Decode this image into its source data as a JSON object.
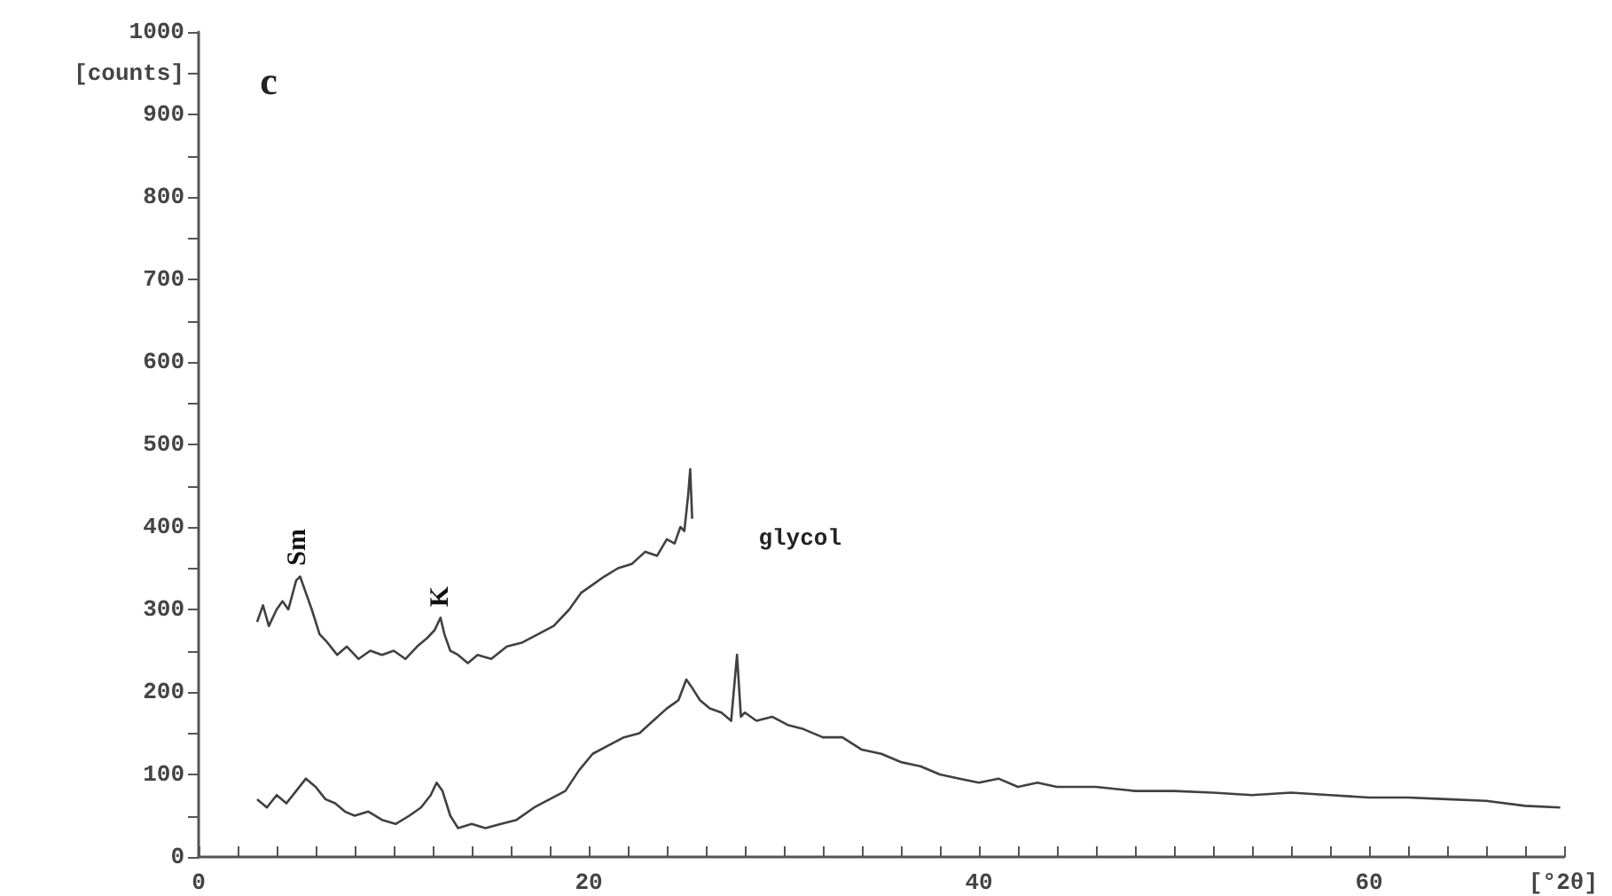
{
  "chart_data": {
    "type": "line",
    "marker": "none",
    "line_style": "solid",
    "xlim": [
      0,
      70
    ],
    "xticks": [
      0,
      {
        "value": 2,
        "label": null
      },
      {
        "value": 4,
        "label": null
      },
      {
        "value": 6,
        "label": null
      },
      {
        "value": 8,
        "label": null
      },
      {
        "value": 10,
        "label": null
      },
      {
        "value": 12,
        "label": null
      },
      {
        "value": 14,
        "label": null
      },
      {
        "value": 16,
        "label": null
      },
      {
        "value": 18,
        "label": null
      },
      20,
      {
        "value": 22,
        "label": null
      },
      {
        "value": 24,
        "label": null
      },
      {
        "value": 26,
        "label": null
      },
      {
        "value": 28,
        "label": null
      },
      {
        "value": 30,
        "label": null
      },
      {
        "value": 32,
        "label": null
      },
      {
        "value": 34,
        "label": null
      },
      {
        "value": 36,
        "label": null
      },
      {
        "value": 38,
        "label": null
      },
      40,
      {
        "value": 42,
        "label": null
      },
      {
        "value": 44,
        "label": null
      },
      {
        "value": 46,
        "label": null
      },
      {
        "value": 48,
        "label": null
      },
      {
        "value": 50,
        "label": null
      },
      {
        "value": 52,
        "label": null
      },
      {
        "value": 54,
        "label": null
      },
      {
        "value": 56,
        "label": null
      },
      {
        "value": 58,
        "label": null
      },
      60,
      {
        "value": 62,
        "label": null
      },
      {
        "value": 64,
        "label": null
      },
      {
        "value": 66,
        "label": null
      },
      {
        "value": 68,
        "label": null
      },
      {
        "value": 70,
        "label": null
      }
    ],
    "xlabel": "[°2θ]",
    "ylim": [
      0,
      1000
    ],
    "yticks": [
      0,
      {
        "value": 50,
        "label": null
      },
      100,
      {
        "value": 150,
        "label": null
      },
      200,
      {
        "value": 250,
        "label": null
      },
      300,
      {
        "value": 350,
        "label": null
      },
      400,
      {
        "value": 450,
        "label": null
      },
      500,
      {
        "value": 550,
        "label": null
      },
      600,
      {
        "value": 650,
        "label": null
      },
      700,
      {
        "value": 750,
        "label": null
      },
      800,
      {
        "value": 850,
        "label": null
      },
      900,
      {
        "value": 950,
        "label": "[counts]"
      },
      1000
    ],
    "annotations": [
      "c",
      "glycol",
      {
        "text": "Sm",
        "x": 5.1,
        "y": 340
      },
      {
        "text": "K",
        "x": 12.4,
        "y": 290
      }
    ],
    "series": [
      {
        "color": "#404040",
        "x": [
          3.0,
          3.3,
          3.6,
          4.0,
          4.3,
          4.6,
          5.0,
          5.2,
          5.5,
          5.8,
          6.2,
          6.6,
          7.1,
          7.6,
          8.2,
          8.8,
          9.4,
          10.0,
          10.6,
          11.2,
          11.7,
          12.1,
          12.4,
          12.6,
          12.9,
          13.3,
          13.8,
          14.3,
          15.0,
          15.8,
          16.6,
          17.4,
          18.2,
          19.0,
          19.6,
          20.2,
          20.8,
          21.5,
          22.2,
          22.9,
          23.5,
          24.0,
          24.4,
          24.7,
          24.9,
          25.1,
          25.2,
          25.3
        ],
        "values": [
          285,
          305,
          280,
          300,
          310,
          300,
          335,
          340,
          320,
          300,
          270,
          260,
          245,
          255,
          240,
          250,
          245,
          250,
          240,
          255,
          265,
          275,
          290,
          270,
          250,
          245,
          235,
          245,
          240,
          255,
          260,
          270,
          280,
          300,
          320,
          330,
          340,
          350,
          355,
          370,
          365,
          385,
          380,
          400,
          395,
          440,
          470,
          410
        ]
      },
      {
        "color": "#404040",
        "x": [
          3.0,
          3.5,
          4.0,
          4.5,
          5.0,
          5.5,
          6.0,
          6.5,
          7.0,
          7.5,
          8.0,
          8.7,
          9.4,
          10.1,
          10.8,
          11.4,
          11.9,
          12.2,
          12.5,
          12.9,
          13.3,
          14.0,
          14.7,
          15.5,
          16.3,
          17.2,
          18.0,
          18.8,
          19.5,
          20.2,
          21.0,
          21.8,
          22.6,
          23.3,
          24.0,
          24.6,
          25.0,
          25.3,
          25.7,
          26.2,
          26.8,
          27.3,
          27.6,
          27.8,
          28.0,
          28.6,
          29.4,
          30.2,
          31.0,
          32.0,
          33.0,
          34.0,
          35.0,
          36.0,
          37.0,
          38.0,
          39.0,
          40.0,
          41.0,
          42.0,
          43.0,
          44.0,
          46.0,
          48.0,
          50.0,
          52.0,
          54.0,
          56.0,
          58.0,
          60.0,
          62.0,
          64.0,
          66.0,
          68.0,
          69.8
        ],
        "values": [
          70,
          60,
          75,
          65,
          80,
          95,
          85,
          70,
          65,
          55,
          50,
          55,
          45,
          40,
          50,
          60,
          75,
          90,
          80,
          50,
          35,
          40,
          35,
          40,
          45,
          60,
          70,
          80,
          105,
          125,
          135,
          145,
          150,
          165,
          180,
          190,
          215,
          205,
          190,
          180,
          175,
          165,
          245,
          170,
          175,
          165,
          170,
          160,
          155,
          145,
          145,
          130,
          125,
          115,
          110,
          100,
          95,
          90,
          95,
          85,
          90,
          85,
          85,
          80,
          80,
          78,
          75,
          78,
          75,
          72,
          72,
          70,
          68,
          62,
          60
        ]
      }
    ]
  }
}
